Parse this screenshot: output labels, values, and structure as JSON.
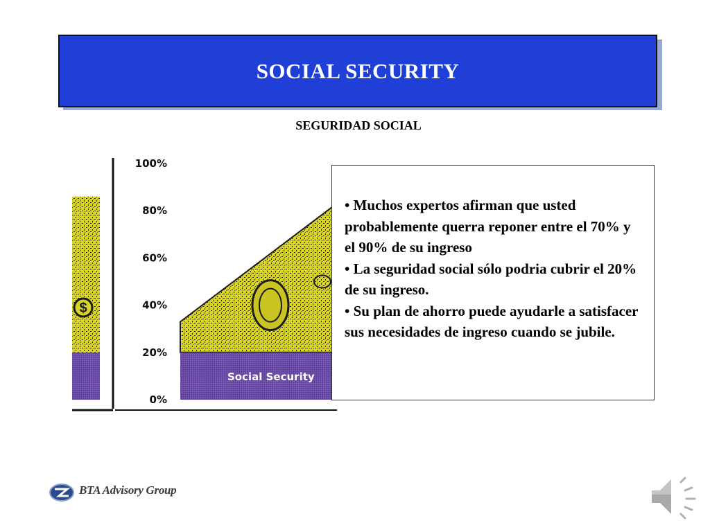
{
  "header": {
    "title": "SOCIAL SECURITY",
    "subtitle": "SEGURIDAD SOCIAL"
  },
  "bullets": [
    "• Muchos expertos afirman que usted probablemente querra reponer entre el 70% y el 90% de su ingreso",
    "• La seguridad social sólo podria cubrir el 20% de su ingreso.",
    "• Su plan de ahorro puede ayudarle a satisfacer sus necesidades de ingreso cuando se jubile."
  ],
  "footer": {
    "logo_text": "BTA Advisory Group"
  },
  "colors": {
    "title_bg": "#1f3fd6",
    "social_security": "#6a4ca6",
    "money_fill": "#d8d42a",
    "money_dark": "#1b1b1b"
  },
  "icons": {
    "logo": "bta-logo-icon",
    "speaker": "speaker-icon"
  },
  "chart_data": {
    "type": "area",
    "y_ticks": [
      "100%",
      "80%",
      "60%",
      "40%",
      "20%",
      "0%"
    ],
    "ylim": [
      0,
      100
    ],
    "series": [
      {
        "name": "Social Security",
        "values": [
          20,
          20
        ]
      }
    ],
    "total_income_range_pct": [
      70,
      90
    ]
  }
}
